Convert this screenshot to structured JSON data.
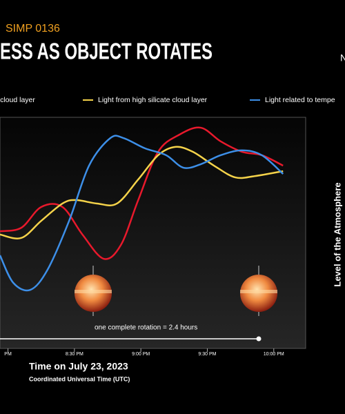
{
  "chart_data": {
    "type": "line",
    "supertitle": "SIMP 0136",
    "title": "ESS AS OBJECT ROTATES",
    "corner_text": "N",
    "x_label": "Time on July 23, 2023",
    "x_sublabel": "Coordinated Universal Time (UTC)",
    "y2_label": "Level of the Atmosphere",
    "annotation": "one complete rotation = 2.4 hours",
    "xlim": [
      19.94,
      22.24
    ],
    "ylim": [
      0,
      100
    ],
    "xticks": [
      {
        "value": 20.0,
        "label": "PM"
      },
      {
        "value": 20.5,
        "label": "8:30 PM"
      },
      {
        "value": 21.0,
        "label": "9:00 PM"
      },
      {
        "value": 21.5,
        "label": "9:30 PM"
      },
      {
        "value": 22.0,
        "label": "10:00 PM"
      }
    ],
    "series": [
      {
        "name": "ron cloud layer",
        "color": "#e8192c",
        "x": [
          19.94,
          20.1,
          20.25,
          20.41,
          20.56,
          20.72,
          20.85,
          20.98,
          21.13,
          21.29,
          21.45,
          21.6,
          21.76,
          21.91,
          22.07
        ],
        "values": [
          50.7,
          52.2,
          61.2,
          61.2,
          49.3,
          38.8,
          44.8,
          64.2,
          85.1,
          92.5,
          95.5,
          89.6,
          85.1,
          83.6,
          79.1
        ]
      },
      {
        "name": "Light from high silicate cloud layer",
        "color": "#f5d34a",
        "x": [
          19.94,
          20.1,
          20.25,
          20.41,
          20.51,
          20.67,
          20.82,
          20.98,
          21.13,
          21.26,
          21.39,
          21.55,
          21.71,
          21.86,
          22.07
        ],
        "values": [
          49.3,
          47.8,
          55.2,
          62.7,
          64.2,
          62.7,
          62.7,
          73.1,
          83.6,
          87.2,
          85.1,
          79.1,
          74.0,
          74.6,
          76.7
        ]
      },
      {
        "name": "Light related to tempe",
        "color": "#3d8fe8",
        "x": [
          19.94,
          20.04,
          20.17,
          20.3,
          20.46,
          20.61,
          20.77,
          20.87,
          21.03,
          21.19,
          21.32,
          21.45,
          21.6,
          21.76,
          21.91,
          22.07
        ],
        "values": [
          40.3,
          28.4,
          25.4,
          34.3,
          55.2,
          79.1,
          91.0,
          91.0,
          86.6,
          83.6,
          78.2,
          79.7,
          83.6,
          85.7,
          83.6,
          75.5
        ]
      }
    ]
  }
}
